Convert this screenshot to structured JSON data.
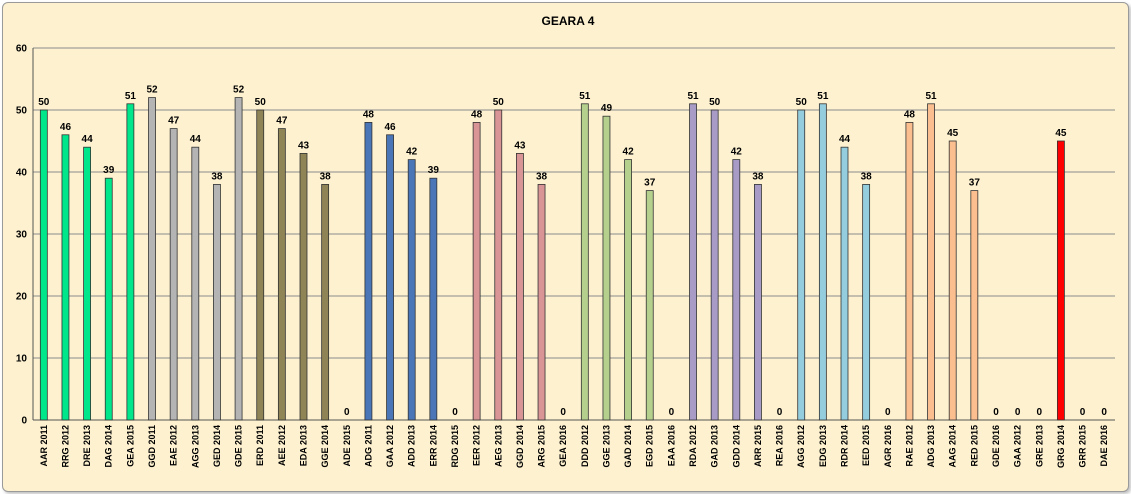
{
  "chart_data": {
    "type": "bar",
    "title": "GEARA 4",
    "xlabel": "",
    "ylabel": "",
    "ylim": [
      0,
      60
    ],
    "yticks": [
      0,
      10,
      20,
      30,
      40,
      50,
      60
    ],
    "grid": true,
    "legend": "none",
    "categories": [
      "AAR 2011",
      "RRG 2012",
      "DRE 2013",
      "DAG 2014",
      "GEA 2015",
      "GGD 2011",
      "EAE 2012",
      "AGG 2013",
      "GED 2014",
      "GDE 2015",
      "ERD 2011",
      "AEE 2012",
      "EDA 2013",
      "GGE 2014",
      "ADE 2015",
      "ADG 2011",
      "GAA 2012",
      "ADD 2013",
      "ERR 2014",
      "RDG 2015",
      "EER 2012",
      "AEG 2013",
      "GGD 2014",
      "ARG 2015",
      "GEA 2016",
      "DDD 2012",
      "GGE 2013",
      "GAD 2014",
      "EGD 2015",
      "EAA 2016",
      "RDA 2012",
      "GAD 2013",
      "GDD 2014",
      "ARR 2015",
      "REA 2016",
      "AGG 2012",
      "EDG 2013",
      "RDR 2014",
      "EED 2015",
      "AGR 2016",
      "RAE 2012",
      "ADG 2013",
      "AAG 2014",
      "RED 2015",
      "GDE 2016",
      "GAA 2012",
      "GRE 2013",
      "GRG 2014",
      "GRR 2015",
      "DAE 2016"
    ],
    "values": [
      50,
      46,
      44,
      39,
      51,
      52,
      47,
      44,
      38,
      52,
      50,
      47,
      43,
      38,
      0,
      48,
      46,
      42,
      39,
      0,
      48,
      50,
      43,
      38,
      0,
      51,
      49,
      42,
      37,
      0,
      51,
      50,
      42,
      38,
      0,
      50,
      51,
      44,
      38,
      0,
      48,
      51,
      45,
      37,
      0,
      0,
      0,
      45,
      0,
      0
    ],
    "colors": [
      "#00e68a",
      "#00e68a",
      "#00e68a",
      "#00e68a",
      "#00e68a",
      "#b4b4b4",
      "#b4b4b4",
      "#b4b4b4",
      "#b4b4b4",
      "#b4b4b4",
      "#8f8456",
      "#8f8456",
      "#8f8456",
      "#8f8456",
      "#8f8456",
      "#4a76b8",
      "#4a76b8",
      "#4a76b8",
      "#4a76b8",
      "#4a76b8",
      "#d99595",
      "#d99595",
      "#d99595",
      "#d99595",
      "#d99595",
      "#b5cf8d",
      "#b5cf8d",
      "#b5cf8d",
      "#b5cf8d",
      "#b5cf8d",
      "#a89bc6",
      "#a89bc6",
      "#a89bc6",
      "#a89bc6",
      "#a89bc6",
      "#94cddd",
      "#94cddd",
      "#94cddd",
      "#94cddd",
      "#94cddd",
      "#fbbf8f",
      "#fbbf8f",
      "#fbbf8f",
      "#fbbf8f",
      "#fbbf8f",
      "#ff0000",
      "#ff0000",
      "#ff0000",
      "#ff0000",
      "#ff0000"
    ]
  }
}
